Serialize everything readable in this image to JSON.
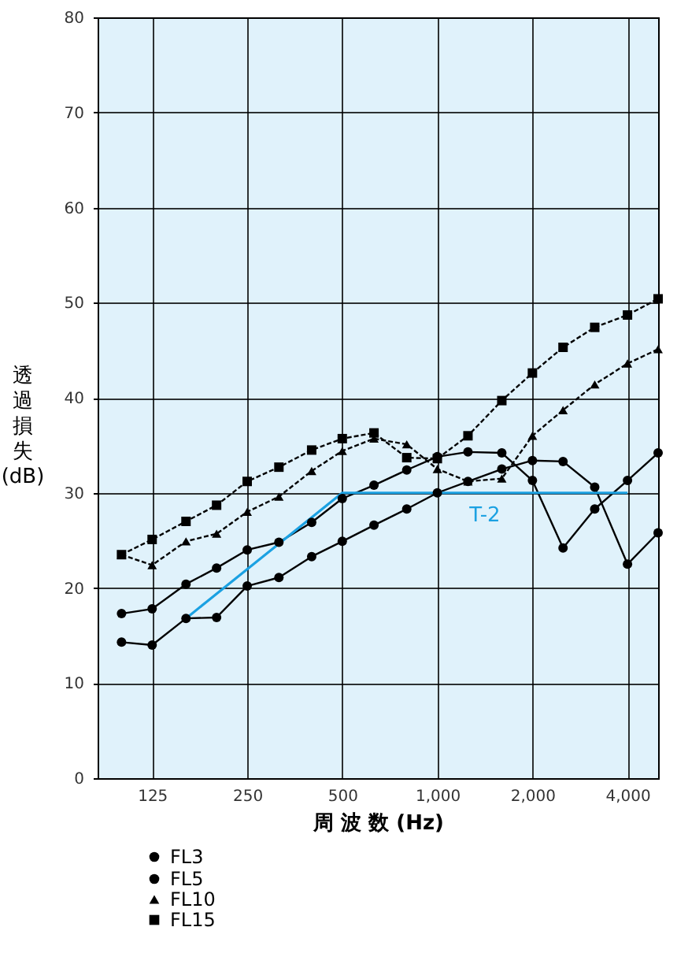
{
  "chart_data": {
    "type": "line",
    "xlabel": "周 波 数 (Hz)",
    "ylabel": "透過損失(dB)",
    "x": [
      100,
      125,
      160,
      200,
      250,
      315,
      400,
      500,
      630,
      800,
      1000,
      1250,
      1600,
      2000,
      2500,
      3150,
      4000,
      5000
    ],
    "log": "x",
    "xlim": [
      84,
      5000
    ],
    "xticks": [
      125,
      250,
      500,
      {
        "value": 1000,
        "label": "1,000"
      },
      {
        "value": 2000,
        "label": "2,000"
      },
      {
        "value": 4000,
        "label": "4,000"
      }
    ],
    "ylim": [
      0,
      80
    ],
    "yticks": [
      0,
      10,
      20,
      30,
      40,
      50,
      60,
      70,
      80
    ],
    "grid": true,
    "legend": "bottom",
    "series": [
      {
        "name": "FL3",
        "color": "#000000",
        "marker": "circle",
        "line_style": "solid",
        "values": [
          14.3,
          14.0,
          16.8,
          16.9,
          20.2,
          21.1,
          23.3,
          24.9,
          26.6,
          28.3,
          30.0,
          31.2,
          32.5,
          33.4,
          33.3,
          30.6,
          22.5,
          25.8
        ]
      },
      {
        "name": "FL5",
        "color": "#000000",
        "marker": "circle",
        "line_style": "solid",
        "values": [
          17.3,
          17.8,
          20.4,
          22.1,
          24.0,
          24.8,
          26.9,
          29.4,
          30.8,
          32.4,
          33.8,
          34.3,
          34.2,
          31.3,
          24.2,
          28.3,
          31.3,
          34.2
        ]
      },
      {
        "name": "FL10",
        "color": "#000000",
        "marker": "triangle",
        "line_style": "dashed",
        "values": [
          23.5,
          22.4,
          24.9,
          25.7,
          28.0,
          29.6,
          32.3,
          34.4,
          35.7,
          35.1,
          32.5,
          31.2,
          31.5,
          36.0,
          38.7,
          41.4,
          43.6,
          45.1
        ]
      },
      {
        "name": "FL15",
        "color": "#000000",
        "marker": "square",
        "line_style": "dashed",
        "values": [
          23.5,
          25.1,
          27.0,
          28.7,
          31.2,
          32.7,
          34.5,
          35.7,
          36.3,
          33.7,
          33.6,
          36.0,
          39.7,
          42.6,
          45.3,
          47.4,
          48.7,
          50.4
        ]
      },
      {
        "name": "T-2",
        "color": "#1ba1e2",
        "marker": "none",
        "line_style": "solid",
        "x": [
          160,
          500,
          4000
        ],
        "values": [
          16.8,
          30,
          30
        ]
      }
    ]
  }
}
